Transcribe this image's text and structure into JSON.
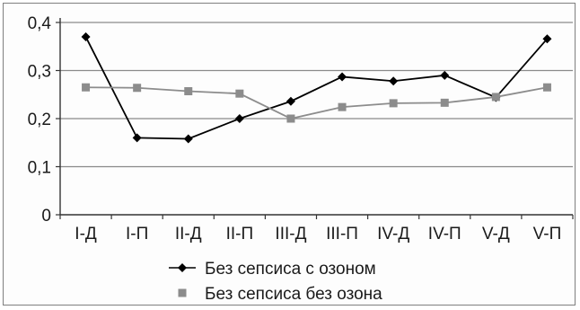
{
  "chart_data": {
    "type": "line",
    "categories": [
      "I-Д",
      "I-П",
      "II-Д",
      "II-П",
      "III-Д",
      "III-П",
      "IV-Д",
      "IV-П",
      "V-Д",
      "V-П"
    ],
    "y_ticks": [
      "0",
      "0,1",
      "0,2",
      "0,3",
      "0,4"
    ],
    "ylim": [
      0,
      0.4
    ],
    "grid": true,
    "legend_position": "bottom",
    "series": [
      {
        "name": "Без сепсиса с озоном",
        "marker": "diamond",
        "color": "#000000",
        "values": [
          0.37,
          0.16,
          0.158,
          0.2,
          0.236,
          0.287,
          0.278,
          0.29,
          0.244,
          0.366
        ]
      },
      {
        "name": "Без сепсиса без озона",
        "marker": "square",
        "color": "#8c8c8c",
        "values": [
          0.265,
          0.264,
          0.257,
          0.252,
          0.2,
          0.224,
          0.232,
          0.233,
          0.245,
          0.265
        ]
      }
    ]
  }
}
